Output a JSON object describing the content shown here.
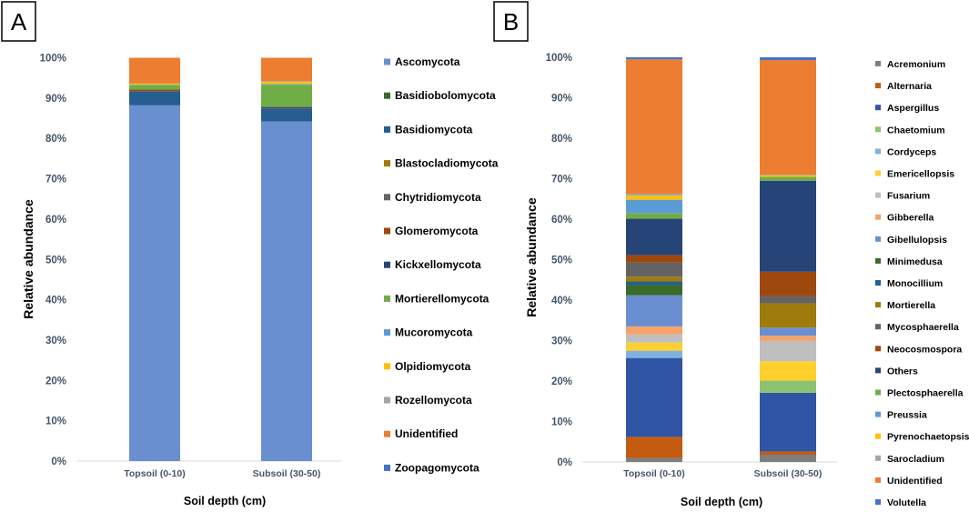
{
  "chart_data": [
    {
      "panel": "A",
      "type": "bar",
      "stacked": true,
      "percent": true,
      "xlabel": "Soil depth (cm)",
      "ylabel": "Relative abundance",
      "ylim": [
        0,
        100
      ],
      "yticks": [
        "0%",
        "10%",
        "20%",
        "30%",
        "40%",
        "50%",
        "60%",
        "70%",
        "80%",
        "90%",
        "100%"
      ],
      "categories": [
        "Topsoil (0-10)",
        "Subsoil (30-50)"
      ],
      "legend_position": "right",
      "series": [
        {
          "name": "Ascomycota",
          "color": "#6a8fd0",
          "values": [
            88.2,
            84.2
          ]
        },
        {
          "name": "Basidiobolomycota",
          "color": "#3a6b2a",
          "values": [
            0,
            0
          ]
        },
        {
          "name": "Basidiomycota",
          "color": "#255e91",
          "values": [
            3.5,
            3.2
          ]
        },
        {
          "name": "Blastocladiomycota",
          "color": "#9e7b0a",
          "values": [
            0,
            0
          ]
        },
        {
          "name": "Chytridiomycota",
          "color": "#636363",
          "values": [
            0,
            0
          ]
        },
        {
          "name": "Glomeromycota",
          "color": "#9e480e",
          "values": [
            0.4,
            0.1
          ]
        },
        {
          "name": "Kickxellomycota",
          "color": "#264478",
          "values": [
            0,
            0.3
          ]
        },
        {
          "name": "Mortierellomycota",
          "color": "#70ad47",
          "values": [
            1.2,
            5.5
          ]
        },
        {
          "name": "Mucoromycota",
          "color": "#5b9bd5",
          "values": [
            0,
            0.2
          ]
        },
        {
          "name": "Olpidiomycota",
          "color": "#ffc000",
          "values": [
            0.2,
            0.5
          ]
        },
        {
          "name": "Rozellomycota",
          "color": "#a5a5a5",
          "values": [
            0.1,
            0.2
          ]
        },
        {
          "name": "Unidentified",
          "color": "#ed7d31",
          "values": [
            6.4,
            5.8
          ]
        },
        {
          "name": "Zoopagomycota",
          "color": "#4472c4",
          "values": [
            0,
            0
          ]
        }
      ]
    },
    {
      "panel": "B",
      "type": "bar",
      "stacked": true,
      "percent": true,
      "xlabel": "Soil depth (cm)",
      "ylabel": "Relative abundance",
      "ylim": [
        0,
        100
      ],
      "yticks": [
        "0%",
        "10%",
        "20%",
        "30%",
        "40%",
        "50%",
        "60%",
        "70%",
        "80%",
        "90%",
        "100%"
      ],
      "categories": [
        "Topsoil (0-10)",
        "Subsoil (30-50)"
      ],
      "legend_position": "right",
      "series": [
        {
          "name": "Acremonium",
          "color": "#7f7f7f",
          "values": [
            1.0,
            1.8
          ]
        },
        {
          "name": "Alternaria",
          "color": "#c55a11",
          "values": [
            5.2,
            0.8
          ]
        },
        {
          "name": "Aspergillus",
          "color": "#2f55a4",
          "values": [
            19.5,
            14.5
          ]
        },
        {
          "name": "Chaetomium",
          "color": "#8dc26f",
          "values": [
            0,
            3.0
          ]
        },
        {
          "name": "Cordyceps",
          "color": "#7fb1de",
          "values": [
            1.8,
            0
          ]
        },
        {
          "name": "Emericellopsis",
          "color": "#ffd02e",
          "values": [
            2.0,
            4.8
          ]
        },
        {
          "name": "Fusarium",
          "color": "#bfbfbf",
          "values": [
            2.0,
            5.0
          ]
        },
        {
          "name": "Gibberella",
          "color": "#f4a46a",
          "values": [
            2.0,
            1.3
          ]
        },
        {
          "name": "Gibellulopsis",
          "color": "#6a8fd0",
          "values": [
            7.7,
            2.0
          ]
        },
        {
          "name": "Minimedusa",
          "color": "#3a6b2a",
          "values": [
            2.5,
            0
          ]
        },
        {
          "name": "Monocillium",
          "color": "#255e91",
          "values": [
            0.9,
            0
          ]
        },
        {
          "name": "Mortierella",
          "color": "#9e7b0a",
          "values": [
            1.2,
            6.0
          ]
        },
        {
          "name": "Mycosphaerella",
          "color": "#636363",
          "values": [
            3.5,
            1.8
          ]
        },
        {
          "name": "Neocosmospora",
          "color": "#9e480e",
          "values": [
            1.8,
            6.0
          ]
        },
        {
          "name": "Others",
          "color": "#264478",
          "values": [
            9.0,
            22.5
          ]
        },
        {
          "name": "Plectosphaerella",
          "color": "#70ad47",
          "values": [
            1.4,
            1.0
          ]
        },
        {
          "name": "Preussia",
          "color": "#5b9bd5",
          "values": [
            3.3,
            0
          ]
        },
        {
          "name": "Pyrenochaetopsis",
          "color": "#ffc000",
          "values": [
            1.0,
            0.3
          ]
        },
        {
          "name": "Sarocladium",
          "color": "#a5a5a5",
          "values": [
            0.5,
            0.2
          ]
        },
        {
          "name": "Unidentified",
          "color": "#ed7d31",
          "values": [
            33.2,
            28.3
          ]
        },
        {
          "name": "Volutella",
          "color": "#4472c4",
          "values": [
            0.5,
            0.7
          ]
        }
      ]
    }
  ]
}
